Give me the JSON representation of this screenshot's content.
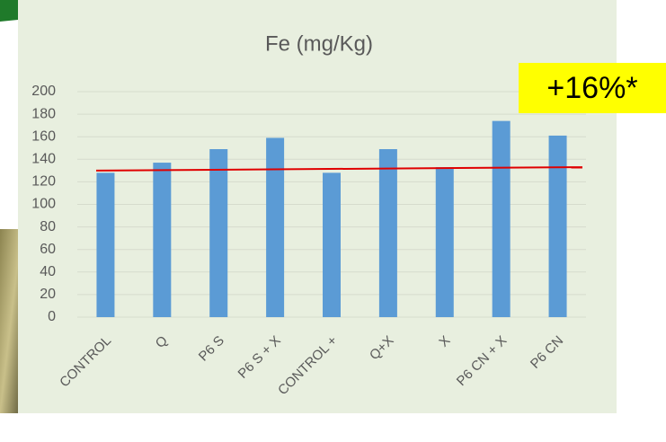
{
  "chart_data": {
    "type": "bar",
    "title": "Fe (mg/Kg)",
    "categories": [
      "CONTROL",
      "Q",
      "P6 S",
      "P6 S + X",
      "CONTROL +",
      "Q+X",
      "X",
      "P6 CN + X",
      "P6 CN"
    ],
    "values": [
      128,
      137,
      149,
      159,
      128,
      149,
      133,
      174,
      161
    ],
    "color": "#5b9bd5",
    "ylim": [
      0,
      200
    ],
    "yticks": [
      0,
      20,
      40,
      60,
      80,
      100,
      120,
      140,
      160,
      180,
      200
    ],
    "grid": true,
    "trend_line": {
      "color": "#e00000",
      "values": [
        130,
        133
      ]
    },
    "annotation": "+16%*"
  }
}
